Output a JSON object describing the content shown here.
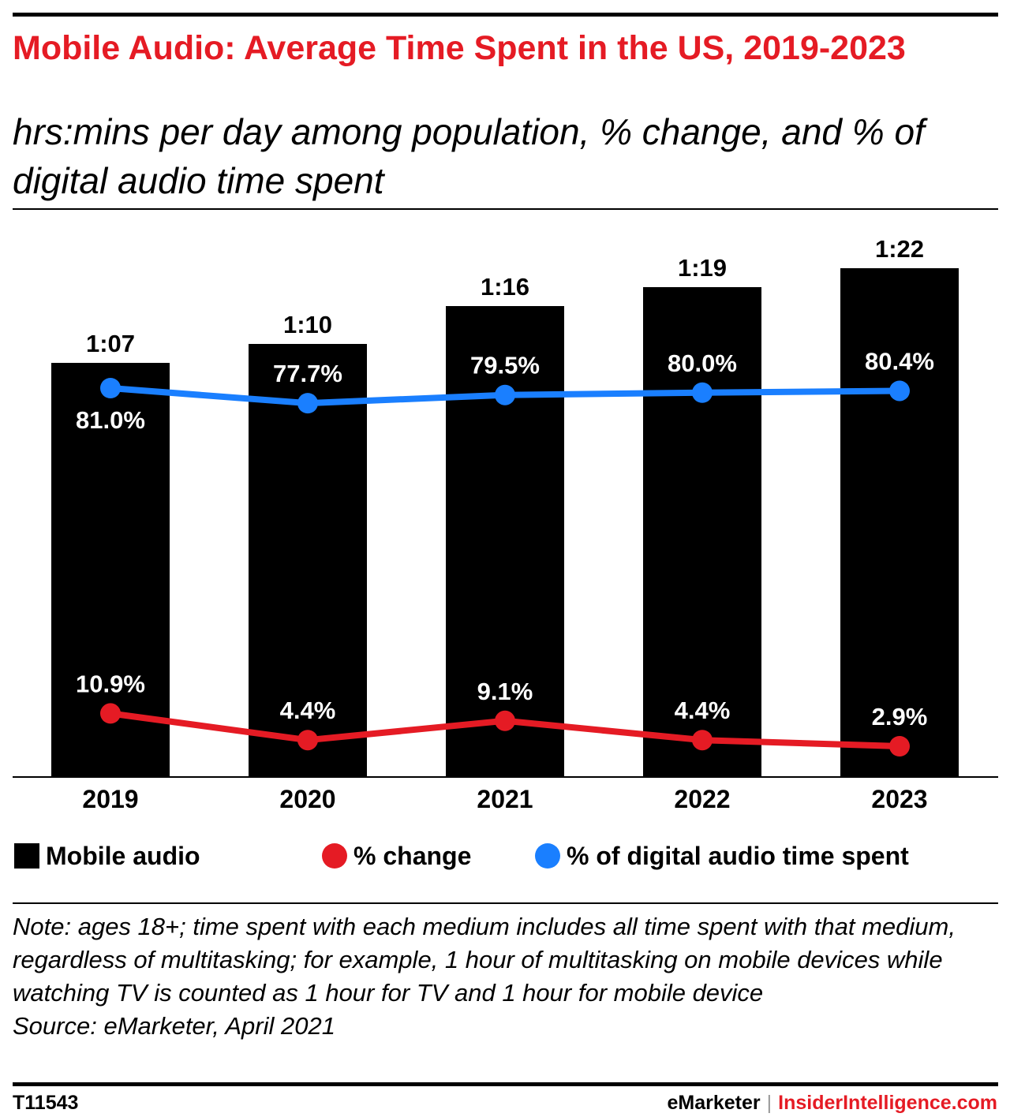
{
  "header": {
    "title": "Mobile Audio: Average Time Spent in the US, 2019-2023",
    "subtitle": "hrs:mins per day among population, % change, and % of digital audio time spent"
  },
  "legend": {
    "items": [
      {
        "label": "Mobile audio",
        "color": "#000000",
        "shape": "square"
      },
      {
        "label": "% change",
        "color": "#e51b24",
        "shape": "circle"
      },
      {
        "label": "% of digital audio time spent",
        "color": "#1a7fff",
        "shape": "circle"
      }
    ]
  },
  "note": "Note: ages 18+; time spent with each medium includes all time spent with that medium, regardless of multitasking; for example, 1 hour of multitasking on mobile devices while watching TV is counted as 1 hour for TV and 1 hour for mobile device",
  "source": "Source: eMarketer, April 2021",
  "footer": {
    "id": "T11543",
    "brand": "eMarketer",
    "separator": "|",
    "site": "InsiderIntelligence.com"
  },
  "chart_data": {
    "type": "bar",
    "categories": [
      "2019",
      "2020",
      "2021",
      "2022",
      "2023"
    ],
    "series": [
      {
        "name": "Mobile audio",
        "kind": "bar",
        "color": "#000000",
        "values": [
          67,
          70,
          76,
          79,
          82
        ],
        "labels": [
          "1:07",
          "1:10",
          "1:16",
          "1:19",
          "1:22"
        ]
      },
      {
        "name": "% change",
        "kind": "line",
        "color": "#e51b24",
        "values": [
          10.9,
          4.4,
          9.1,
          4.4,
          2.9
        ],
        "labels": [
          "10.9%",
          "4.4%",
          "9.1%",
          "4.4%",
          "2.9%"
        ]
      },
      {
        "name": "% of digital audio time spent",
        "kind": "line",
        "color": "#1a7fff",
        "values": [
          81.0,
          77.7,
          79.5,
          80.0,
          80.4
        ],
        "labels": [
          "81.0%",
          "77.7%",
          "79.5%",
          "80.0%",
          "80.4%"
        ]
      }
    ],
    "grid": false,
    "legend_position": "bottom"
  }
}
